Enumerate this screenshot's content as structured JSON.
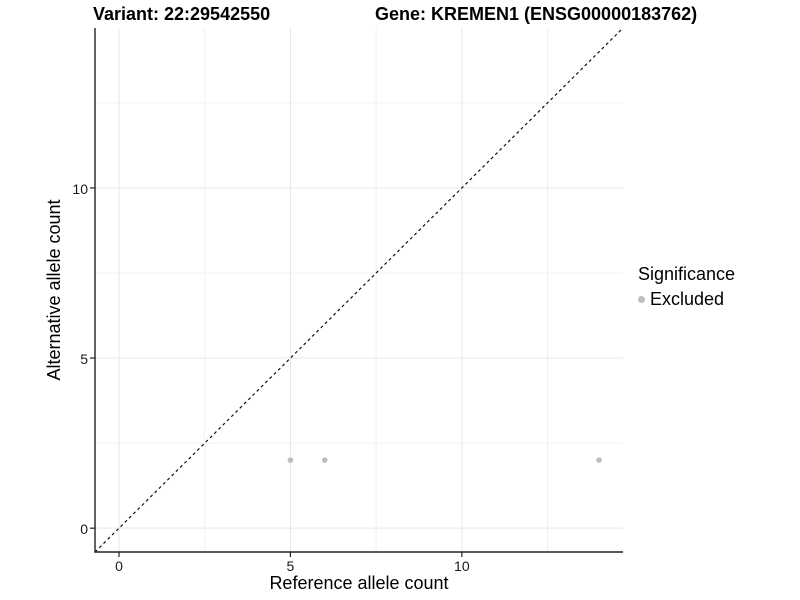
{
  "header": {
    "variant_title": "Variant: 22:29542550",
    "gene_title": "Gene: KREMEN1 (ENSG00000183762)"
  },
  "chart_data": {
    "type": "scatter",
    "title_left": "Variant: 22:29542550",
    "title_right": "Gene: KREMEN1 (ENSG00000183762)",
    "xlabel": "Reference allele count",
    "ylabel": "Alternative allele count",
    "xlim": [
      -0.7,
      14.7
    ],
    "ylim": [
      -0.7,
      14.7
    ],
    "x_ticks": [
      0,
      5,
      10
    ],
    "y_ticks": [
      0,
      5,
      10
    ],
    "minor_ticks": [
      2.5,
      7.5,
      12.5
    ],
    "grid": true,
    "legend_position": "right",
    "series": [
      {
        "name": "Excluded",
        "color": "#bdbdbd",
        "points": [
          {
            "x": 5,
            "y": 2
          },
          {
            "x": 6,
            "y": 2
          },
          {
            "x": 14,
            "y": 2
          }
        ]
      }
    ],
    "annotations": [
      {
        "type": "identity-line",
        "description": "dashed y = x reference line",
        "style": "dashed",
        "from": [
          -0.7,
          -0.7
        ],
        "to": [
          14.65,
          14.65
        ]
      }
    ]
  },
  "legend": {
    "title": "Significance",
    "items": [
      {
        "label": "Excluded",
        "color": "#bdbdbd"
      }
    ]
  },
  "colors": {
    "point": "#bdbdbd",
    "grid_major": "#e7e7e7",
    "grid_minor": "#f2f2f2",
    "axis_line": "#222222",
    "identity_line": "#111111",
    "tick_mark": "#222222",
    "background": "#ffffff"
  }
}
